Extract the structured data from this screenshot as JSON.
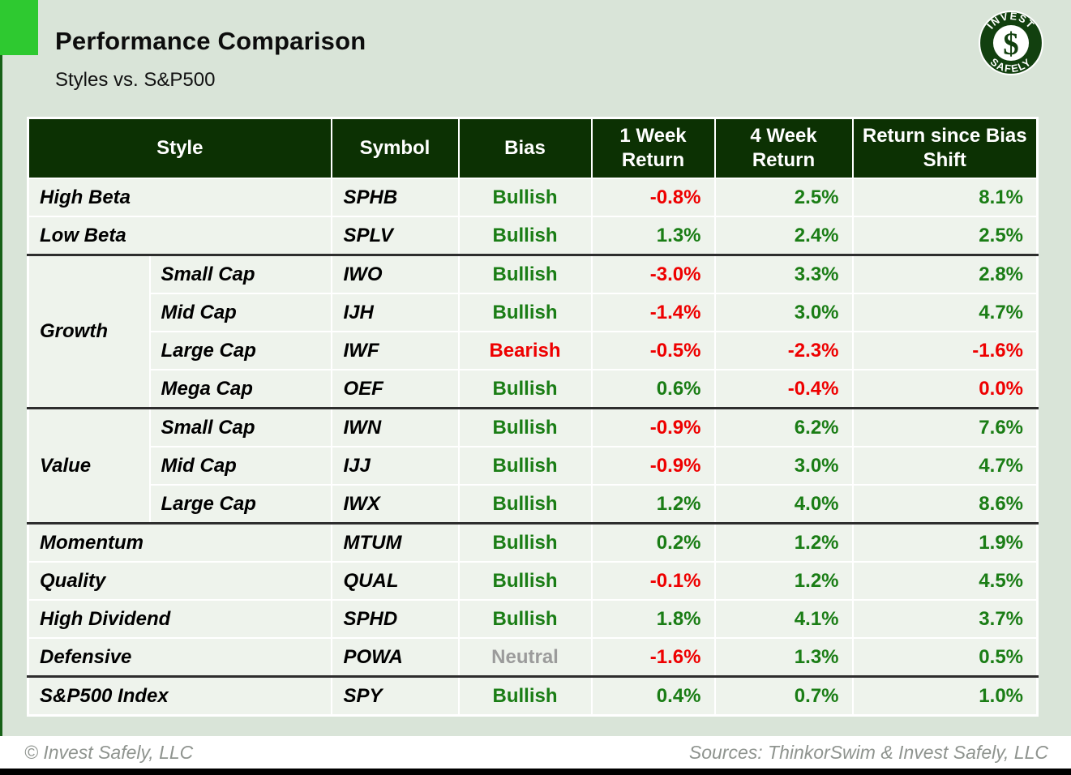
{
  "page": {
    "title": "Performance Comparison",
    "subtitle": "Styles vs. S&P500"
  },
  "logo": {
    "top_text": "INVEST",
    "bottom_text": "SAFELY",
    "symbol": "$"
  },
  "table": {
    "columns": [
      "Style",
      "Symbol",
      "Bias",
      "1 Week Return",
      "4 Week Return",
      "Return since Bias Shift"
    ],
    "rows": [
      {
        "style": "High Beta",
        "symbol": "SPHB",
        "bias": {
          "label": "Bullish",
          "tone": "green"
        },
        "week1": {
          "v": "-0.8%",
          "tone": "red"
        },
        "week4": {
          "v": "2.5%",
          "tone": "green"
        },
        "since": {
          "v": "8.1%",
          "tone": "green"
        },
        "separator_above": false
      },
      {
        "style": "Low Beta",
        "symbol": "SPLV",
        "bias": {
          "label": "Bullish",
          "tone": "green"
        },
        "week1": {
          "v": "1.3%",
          "tone": "green"
        },
        "week4": {
          "v": "2.4%",
          "tone": "green"
        },
        "since": {
          "v": "2.5%",
          "tone": "green"
        },
        "separator_above": false
      },
      {
        "group": {
          "label": "Growth",
          "rowspan": 4
        },
        "grouped": true,
        "style": "Small Cap",
        "symbol": "IWO",
        "bias": {
          "label": "Bullish",
          "tone": "green"
        },
        "week1": {
          "v": "-3.0%",
          "tone": "red"
        },
        "week4": {
          "v": "3.3%",
          "tone": "green"
        },
        "since": {
          "v": "2.8%",
          "tone": "green"
        },
        "separator_above": true
      },
      {
        "grouped": true,
        "style": "Mid Cap",
        "symbol": "IJH",
        "bias": {
          "label": "Bullish",
          "tone": "green"
        },
        "week1": {
          "v": "-1.4%",
          "tone": "red"
        },
        "week4": {
          "v": "3.0%",
          "tone": "green"
        },
        "since": {
          "v": "4.7%",
          "tone": "green"
        },
        "separator_above": false
      },
      {
        "grouped": true,
        "style": "Large Cap",
        "symbol": "IWF",
        "bias": {
          "label": "Bearish",
          "tone": "red"
        },
        "week1": {
          "v": "-0.5%",
          "tone": "red"
        },
        "week4": {
          "v": "-2.3%",
          "tone": "red"
        },
        "since": {
          "v": "-1.6%",
          "tone": "red"
        },
        "separator_above": false
      },
      {
        "grouped": true,
        "style": "Mega Cap",
        "symbol": "OEF",
        "bias": {
          "label": "Bullish",
          "tone": "green"
        },
        "week1": {
          "v": "0.6%",
          "tone": "green"
        },
        "week4": {
          "v": "-0.4%",
          "tone": "red"
        },
        "since": {
          "v": "0.0%",
          "tone": "red"
        },
        "separator_above": false
      },
      {
        "group": {
          "label": "Value",
          "rowspan": 3
        },
        "grouped": true,
        "style": "Small Cap",
        "symbol": "IWN",
        "bias": {
          "label": "Bullish",
          "tone": "green"
        },
        "week1": {
          "v": "-0.9%",
          "tone": "red"
        },
        "week4": {
          "v": "6.2%",
          "tone": "green"
        },
        "since": {
          "v": "7.6%",
          "tone": "green"
        },
        "separator_above": true
      },
      {
        "grouped": true,
        "style": "Mid Cap",
        "symbol": "IJJ",
        "bias": {
          "label": "Bullish",
          "tone": "green"
        },
        "week1": {
          "v": "-0.9%",
          "tone": "red"
        },
        "week4": {
          "v": "3.0%",
          "tone": "green"
        },
        "since": {
          "v": "4.7%",
          "tone": "green"
        },
        "separator_above": false
      },
      {
        "grouped": true,
        "style": "Large Cap",
        "symbol": "IWX",
        "bias": {
          "label": "Bullish",
          "tone": "green"
        },
        "week1": {
          "v": "1.2%",
          "tone": "green"
        },
        "week4": {
          "v": "4.0%",
          "tone": "green"
        },
        "since": {
          "v": "8.6%",
          "tone": "green"
        },
        "separator_above": false
      },
      {
        "style": "Momentum",
        "symbol": "MTUM",
        "bias": {
          "label": "Bullish",
          "tone": "green"
        },
        "week1": {
          "v": "0.2%",
          "tone": "green"
        },
        "week4": {
          "v": "1.2%",
          "tone": "green"
        },
        "since": {
          "v": "1.9%",
          "tone": "green"
        },
        "separator_above": true
      },
      {
        "style": "Quality",
        "symbol": "QUAL",
        "bias": {
          "label": "Bullish",
          "tone": "green"
        },
        "week1": {
          "v": "-0.1%",
          "tone": "red"
        },
        "week4": {
          "v": "1.2%",
          "tone": "green"
        },
        "since": {
          "v": "4.5%",
          "tone": "green"
        },
        "separator_above": false
      },
      {
        "style": "High Dividend",
        "symbol": "SPHD",
        "bias": {
          "label": "Bullish",
          "tone": "green"
        },
        "week1": {
          "v": "1.8%",
          "tone": "green"
        },
        "week4": {
          "v": "4.1%",
          "tone": "green"
        },
        "since": {
          "v": "3.7%",
          "tone": "green"
        },
        "separator_above": false
      },
      {
        "style": "Defensive",
        "symbol": "POWA",
        "bias": {
          "label": "Neutral",
          "tone": "gray"
        },
        "week1": {
          "v": "-1.6%",
          "tone": "red"
        },
        "week4": {
          "v": "1.3%",
          "tone": "green"
        },
        "since": {
          "v": "0.5%",
          "tone": "green"
        },
        "separator_above": false
      },
      {
        "style": "S&P500 Index",
        "symbol": "SPY",
        "bias": {
          "label": "Bullish",
          "tone": "green"
        },
        "week1": {
          "v": "0.4%",
          "tone": "green"
        },
        "week4": {
          "v": "0.7%",
          "tone": "green"
        },
        "since": {
          "v": "1.0%",
          "tone": "green"
        },
        "separator_above": true
      }
    ]
  },
  "footer": {
    "left": "© Invest Safely, LLC",
    "right": "Sources: ThinkorSwim & Invest Safely, LLC"
  },
  "colors": {
    "accent_green": "#2ec930",
    "header_green": "#0c3103",
    "positive_green": "#1a7d15",
    "negative_red": "#ee0000",
    "neutral_gray": "#9b9b9b",
    "page_bg": "#d9e4d8",
    "row_bg": "#eef3ec"
  }
}
